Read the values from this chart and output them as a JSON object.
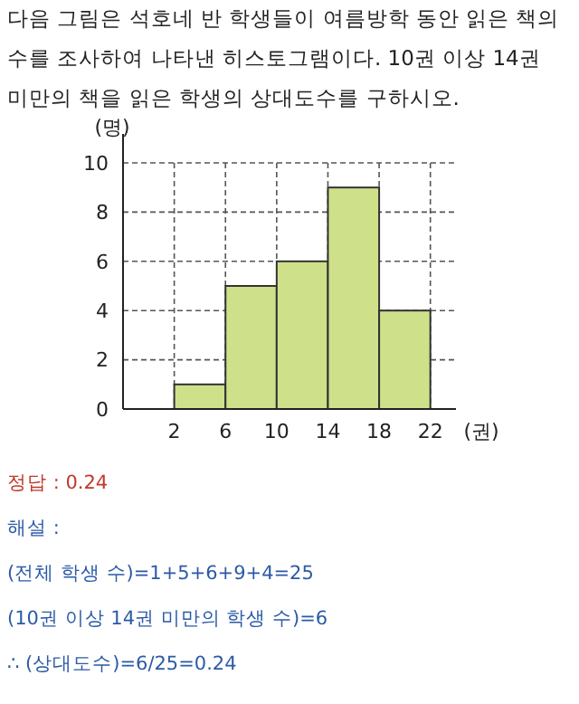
{
  "chart_data": {
    "type": "histogram",
    "title": "다음 그림은 석호네 반 학생들이 여름방학 동안 읽은 책의 수를 조사하여 나타낸 히스토그램이다. 10권 이상 14권 미만의 책을 읽은 학생의 상대도수를 구하시오.",
    "xlabel": "(권)",
    "ylabel": "(명)",
    "bins": [
      2,
      6,
      10,
      14,
      18,
      22
    ],
    "values": [
      1,
      5,
      6,
      9,
      4
    ],
    "color": "#cfe08a",
    "xlim": [
      -2,
      24
    ],
    "xticks": [
      2,
      6,
      10,
      14,
      18,
      22
    ],
    "ylim": [
      0,
      10
    ],
    "yticks": [
      0,
      2,
      4,
      6,
      8,
      10
    ],
    "grid": true,
    "annotations": [
      "정답 : 0.24",
      "해설 :",
      "(전체 학생 수)=1+5+6+9+4=25",
      "(10권 이상 14권 미만의 학생 수)=6",
      "∴ (상대도수)=6/25=0.24"
    ]
  }
}
